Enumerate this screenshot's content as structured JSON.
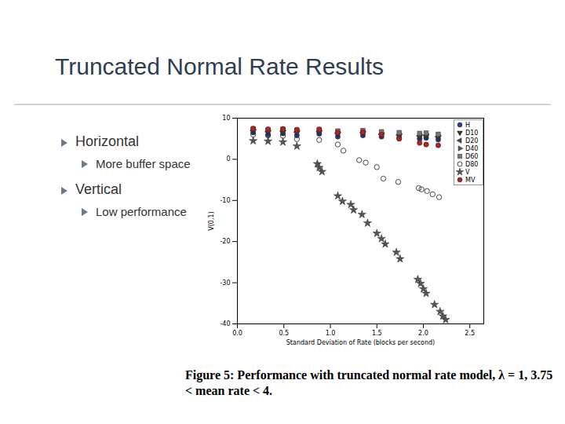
{
  "slide": {
    "title": "Truncated Normal Rate Results",
    "bullets": [
      {
        "text": "Horizontal",
        "sub": [
          "More buffer space"
        ]
      },
      {
        "text": "Vertical",
        "sub": [
          "Low performance"
        ]
      }
    ]
  },
  "chart_data": {
    "type": "scatter",
    "caption": "Figure 5: Performance with truncated normal rate model, λ = 1, 3.75 < mean rate < 4.",
    "x_label": "Standard Deviation of Rate (blocks per second)",
    "y_label": "V(0,1)",
    "xlim": [
      0,
      2.65
    ],
    "xticks": [
      {
        "value": 0,
        "label": "0.0"
      },
      {
        "value": 0.5,
        "label": "0.5"
      },
      {
        "value": 1,
        "label": "1.0"
      },
      {
        "value": 1.5,
        "label": "1.5"
      },
      {
        "value": 2,
        "label": "2.0"
      },
      {
        "value": 2.5,
        "label": "2.5"
      }
    ],
    "ylim": [
      -40,
      10
    ],
    "yticks": [
      -40,
      -30,
      -20,
      -10,
      0,
      10
    ],
    "grid": false,
    "legend": "top-right",
    "series": [
      {
        "name": "H",
        "color": "#2a3f9e",
        "marker": "circle",
        "x": [
          0.17,
          0.33,
          0.49,
          0.64,
          0.88,
          1.08,
          1.35,
          1.55,
          1.74,
          1.96,
          2.03,
          2.16
        ],
        "values": [
          6.5,
          6.0,
          6.3,
          5.8,
          6.2,
          5.5,
          5.8,
          5.5,
          5.2,
          5.0,
          5.2,
          4.8
        ]
      },
      {
        "name": "D10",
        "color": "#333333",
        "marker": "triangle-down",
        "x": [
          0.17,
          0.33,
          0.49,
          0.64,
          0.88,
          1.08,
          1.35,
          1.55,
          1.74,
          1.96,
          2.03,
          2.16
        ],
        "values": [
          6.8,
          6.5,
          6.6,
          6.4,
          6.5,
          6.0,
          6.2,
          5.8,
          5.6,
          5.4,
          5.5,
          5.2
        ]
      },
      {
        "name": "D20",
        "color": "#444444",
        "marker": "triangle-left",
        "x": [
          0.17,
          0.33,
          0.49,
          0.64,
          0.88,
          1.08,
          1.35,
          1.55,
          1.74,
          1.96,
          2.03,
          2.16
        ],
        "values": [
          7.0,
          6.7,
          6.8,
          6.6,
          6.7,
          6.3,
          6.5,
          6.1,
          5.9,
          5.7,
          5.8,
          5.5
        ]
      },
      {
        "name": "D40",
        "color": "#555555",
        "marker": "triangle-right",
        "x": [
          0.17,
          0.33,
          0.49,
          0.64,
          0.88,
          1.08,
          1.35,
          1.55,
          1.74,
          1.96,
          2.03,
          2.16
        ],
        "values": [
          7.2,
          7.0,
          7.0,
          6.9,
          7.0,
          6.6,
          6.8,
          6.4,
          6.2,
          6.0,
          6.1,
          5.8
        ]
      },
      {
        "name": "D60",
        "color": "#777777",
        "marker": "square",
        "x": [
          0.17,
          0.33,
          0.49,
          0.64,
          0.88,
          1.08,
          1.35,
          1.55,
          1.74,
          1.96,
          2.03,
          2.16
        ],
        "values": [
          7.4,
          7.2,
          7.3,
          7.1,
          7.2,
          6.9,
          7.0,
          6.7,
          6.5,
          6.3,
          6.4,
          6.1
        ]
      },
      {
        "name": "D80",
        "color": "#333333",
        "marker": "circle-open",
        "x": [
          0.17,
          0.33,
          0.49,
          0.64,
          0.88,
          1.08,
          1.14,
          1.31,
          1.38,
          1.5,
          1.57,
          1.73,
          1.95,
          1.98,
          2.04,
          2.1,
          2.17
        ],
        "values": [
          6.0,
          5.8,
          5.7,
          4.9,
          4.7,
          3.6,
          2.1,
          -0.2,
          -0.8,
          -1.9,
          -4.7,
          -5.5,
          -7.0,
          -7.3,
          -7.7,
          -8.5,
          -9.2
        ]
      },
      {
        "name": "V",
        "color": "#555555",
        "marker": "star",
        "x": [
          0.17,
          0.33,
          0.49,
          0.64,
          0.86,
          0.88,
          0.91,
          1.08,
          1.13,
          1.22,
          1.25,
          1.34,
          1.4,
          1.5,
          1.55,
          1.59,
          1.71,
          1.75,
          1.94,
          1.97,
          2.0,
          2.03,
          2.12,
          2.18,
          2.21,
          2.24
        ],
        "values": [
          4.5,
          4.4,
          4.2,
          3.2,
          -1.1,
          -2.0,
          -3.0,
          -8.9,
          -10.2,
          -11.0,
          -12.3,
          -13.4,
          -15.5,
          -18.0,
          -19.3,
          -20.6,
          -22.6,
          -24.2,
          -29.2,
          -30.2,
          -31.5,
          -32.6,
          -35.3,
          -37.0,
          -38.1,
          -39.0
        ]
      },
      {
        "name": "MV",
        "color": "#b22222",
        "marker": "circle",
        "x": [
          0.17,
          0.33,
          0.49,
          0.64,
          0.88,
          1.08,
          1.35,
          1.55,
          1.74,
          1.96,
          2.03,
          2.16
        ],
        "values": [
          7.5,
          7.3,
          7.4,
          7.2,
          7.3,
          6.5,
          6.6,
          6.0,
          5.0,
          4.0,
          3.6,
          3.4
        ]
      }
    ]
  }
}
